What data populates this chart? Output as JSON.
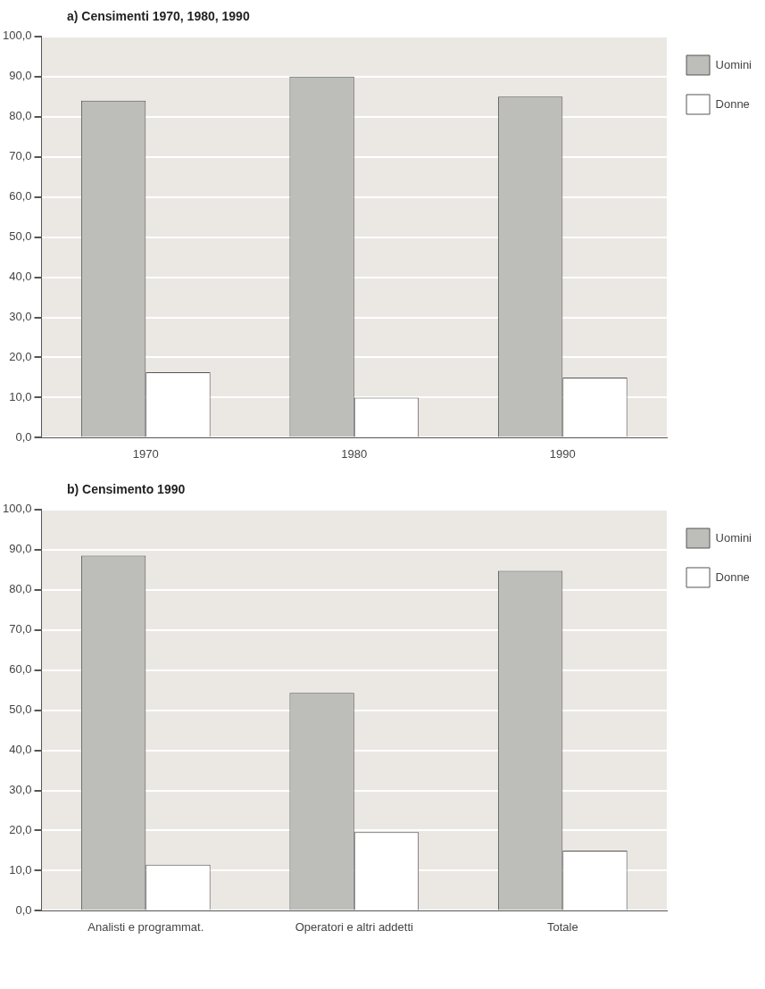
{
  "chart_data": [
    {
      "type": "bar",
      "title": "a) Censimenti 1970, 1980, 1990",
      "categories": [
        "1970",
        "1980",
        "1990"
      ],
      "series": [
        {
          "name": "Uomini",
          "color": "#bdbdb9",
          "values": [
            84,
            90,
            85
          ]
        },
        {
          "name": "Donne",
          "color": "#ffffff",
          "values": [
            16.3,
            10,
            15
          ]
        }
      ],
      "ylim": [
        0,
        100
      ],
      "yticks": [
        {
          "value": 0,
          "label": "0,0"
        },
        {
          "value": 10,
          "label": "10,0"
        },
        {
          "value": 20,
          "label": "20,0"
        },
        {
          "value": 30,
          "label": "30,0"
        },
        {
          "value": 40,
          "label": "40,0"
        },
        {
          "value": 50,
          "label": "50,0"
        },
        {
          "value": 60,
          "label": "60,0"
        },
        {
          "value": 70,
          "label": "70,0"
        },
        {
          "value": 80,
          "label": "80,0"
        },
        {
          "value": 90,
          "label": "90,0"
        },
        {
          "value": 100,
          "label": "100,0"
        }
      ],
      "grid": "y",
      "legend": "top right"
    },
    {
      "type": "bar",
      "title": "b) Censimento 1990",
      "categories": [
        "Analisti e programmat.",
        "Operatori e altri addetti",
        "Totale"
      ],
      "series": [
        {
          "name": "Uomini",
          "color": "#bdbdb9",
          "values": [
            88.5,
            54.3,
            84.7
          ]
        },
        {
          "name": "Donne",
          "color": "#ffffff",
          "values": [
            11.5,
            19.6,
            15
          ]
        }
      ],
      "ylim": [
        0,
        100
      ],
      "yticks": [
        {
          "value": 0,
          "label": "0,0"
        },
        {
          "value": 10,
          "label": "10,0"
        },
        {
          "value": 20,
          "label": "20,0"
        },
        {
          "value": 30,
          "label": "30,0"
        },
        {
          "value": 40,
          "label": "40,0"
        },
        {
          "value": 50,
          "label": "50,0"
        },
        {
          "value": 60,
          "label": "60,0"
        },
        {
          "value": 70,
          "label": "70,0"
        },
        {
          "value": 80,
          "label": "80,0"
        },
        {
          "value": 90,
          "label": "90,0"
        },
        {
          "value": 100,
          "label": "100,0"
        }
      ],
      "grid": "y",
      "legend": "top right"
    }
  ]
}
